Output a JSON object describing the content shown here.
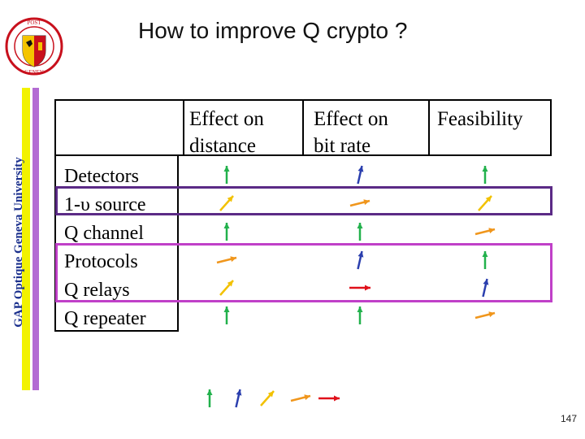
{
  "slide": {
    "title": "How to improve Q crypto ?",
    "side_text": "GAP Optique Geneva University",
    "page_number": "147"
  },
  "table": {
    "columns": [
      "Effect on distance",
      "Effect on bit rate",
      "Feasibility"
    ],
    "column_lines": {
      "c1": [
        "Effect on",
        "distance"
      ],
      "c2": [
        "Effect on",
        "bit rate"
      ],
      "c3": [
        "Feasibility"
      ]
    },
    "rows": [
      "Detectors",
      "1-υ source",
      "Q channel",
      "Protocols",
      "Q relays",
      "Q repeater"
    ],
    "arrows": [
      [
        "up-green",
        "up-blue",
        "up-green"
      ],
      [
        "diag-yellow",
        "flat-orange",
        "diag-yellow"
      ],
      [
        "up-green",
        "up-green",
        "flat-orange"
      ],
      [
        "flat-orange",
        "up-blue",
        "up-green"
      ],
      [
        "diag-yellow",
        "flat-red",
        "up-blue"
      ],
      [
        "up-green",
        "up-green",
        "flat-orange"
      ]
    ]
  },
  "legend": {
    "arrows": [
      "up-green",
      "up-blue",
      "diag-yellow",
      "flat-orange",
      "flat-red"
    ]
  },
  "colors": {
    "green": "#22b14c",
    "blue": "#2b3fae",
    "yellow": "#f2c100",
    "orange": "#f0961c",
    "red": "#e0101a",
    "highlight_1": "#5b2a86",
    "highlight_2": "#c040c8"
  }
}
